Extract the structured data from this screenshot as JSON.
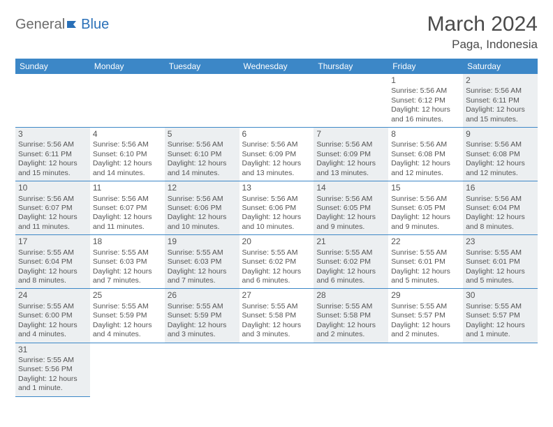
{
  "brand": {
    "part1": "General",
    "part2": "Blue"
  },
  "title": {
    "month": "March 2024",
    "location": "Paga, Indonesia"
  },
  "weekdays": [
    "Sunday",
    "Monday",
    "Tuesday",
    "Wednesday",
    "Thursday",
    "Friday",
    "Saturday"
  ],
  "colors": {
    "header_bg": "#3c87c7",
    "header_text": "#ffffff",
    "row_divider": "#3c87c7",
    "shade_bg": "#eceff1",
    "text": "#555555",
    "brand_gray": "#6b6b6b",
    "brand_blue": "#2a70b8"
  },
  "layout": {
    "first_weekday_index": 5,
    "days_in_month": 31,
    "rows": 6,
    "cols": 7
  },
  "days": {
    "1": {
      "sunrise": "5:56 AM",
      "sunset": "6:12 PM",
      "daylight": "12 hours and 16 minutes."
    },
    "2": {
      "sunrise": "5:56 AM",
      "sunset": "6:11 PM",
      "daylight": "12 hours and 15 minutes."
    },
    "3": {
      "sunrise": "5:56 AM",
      "sunset": "6:11 PM",
      "daylight": "12 hours and 15 minutes."
    },
    "4": {
      "sunrise": "5:56 AM",
      "sunset": "6:10 PM",
      "daylight": "12 hours and 14 minutes."
    },
    "5": {
      "sunrise": "5:56 AM",
      "sunset": "6:10 PM",
      "daylight": "12 hours and 14 minutes."
    },
    "6": {
      "sunrise": "5:56 AM",
      "sunset": "6:09 PM",
      "daylight": "12 hours and 13 minutes."
    },
    "7": {
      "sunrise": "5:56 AM",
      "sunset": "6:09 PM",
      "daylight": "12 hours and 13 minutes."
    },
    "8": {
      "sunrise": "5:56 AM",
      "sunset": "6:08 PM",
      "daylight": "12 hours and 12 minutes."
    },
    "9": {
      "sunrise": "5:56 AM",
      "sunset": "6:08 PM",
      "daylight": "12 hours and 12 minutes."
    },
    "10": {
      "sunrise": "5:56 AM",
      "sunset": "6:07 PM",
      "daylight": "12 hours and 11 minutes."
    },
    "11": {
      "sunrise": "5:56 AM",
      "sunset": "6:07 PM",
      "daylight": "12 hours and 11 minutes."
    },
    "12": {
      "sunrise": "5:56 AM",
      "sunset": "6:06 PM",
      "daylight": "12 hours and 10 minutes."
    },
    "13": {
      "sunrise": "5:56 AM",
      "sunset": "6:06 PM",
      "daylight": "12 hours and 10 minutes."
    },
    "14": {
      "sunrise": "5:56 AM",
      "sunset": "6:05 PM",
      "daylight": "12 hours and 9 minutes."
    },
    "15": {
      "sunrise": "5:56 AM",
      "sunset": "6:05 PM",
      "daylight": "12 hours and 9 minutes."
    },
    "16": {
      "sunrise": "5:56 AM",
      "sunset": "6:04 PM",
      "daylight": "12 hours and 8 minutes."
    },
    "17": {
      "sunrise": "5:55 AM",
      "sunset": "6:04 PM",
      "daylight": "12 hours and 8 minutes."
    },
    "18": {
      "sunrise": "5:55 AM",
      "sunset": "6:03 PM",
      "daylight": "12 hours and 7 minutes."
    },
    "19": {
      "sunrise": "5:55 AM",
      "sunset": "6:03 PM",
      "daylight": "12 hours and 7 minutes."
    },
    "20": {
      "sunrise": "5:55 AM",
      "sunset": "6:02 PM",
      "daylight": "12 hours and 6 minutes."
    },
    "21": {
      "sunrise": "5:55 AM",
      "sunset": "6:02 PM",
      "daylight": "12 hours and 6 minutes."
    },
    "22": {
      "sunrise": "5:55 AM",
      "sunset": "6:01 PM",
      "daylight": "12 hours and 5 minutes."
    },
    "23": {
      "sunrise": "5:55 AM",
      "sunset": "6:01 PM",
      "daylight": "12 hours and 5 minutes."
    },
    "24": {
      "sunrise": "5:55 AM",
      "sunset": "6:00 PM",
      "daylight": "12 hours and 4 minutes."
    },
    "25": {
      "sunrise": "5:55 AM",
      "sunset": "5:59 PM",
      "daylight": "12 hours and 4 minutes."
    },
    "26": {
      "sunrise": "5:55 AM",
      "sunset": "5:59 PM",
      "daylight": "12 hours and 3 minutes."
    },
    "27": {
      "sunrise": "5:55 AM",
      "sunset": "5:58 PM",
      "daylight": "12 hours and 3 minutes."
    },
    "28": {
      "sunrise": "5:55 AM",
      "sunset": "5:58 PM",
      "daylight": "12 hours and 2 minutes."
    },
    "29": {
      "sunrise": "5:55 AM",
      "sunset": "5:57 PM",
      "daylight": "12 hours and 2 minutes."
    },
    "30": {
      "sunrise": "5:55 AM",
      "sunset": "5:57 PM",
      "daylight": "12 hours and 1 minute."
    },
    "31": {
      "sunrise": "5:55 AM",
      "sunset": "5:56 PM",
      "daylight": "12 hours and 1 minute."
    }
  },
  "labels": {
    "sunrise": "Sunrise:",
    "sunset": "Sunset:",
    "daylight": "Daylight:"
  }
}
